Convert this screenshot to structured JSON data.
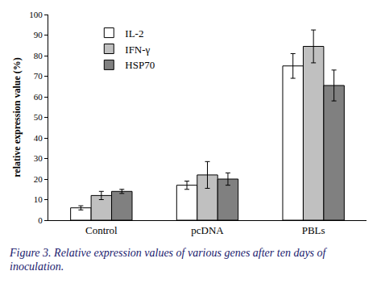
{
  "chart_data": {
    "type": "bar",
    "caption": "Figure 3. Relative expression values of various genes after ten days of inoculation.",
    "y_label": "relative expression value (%)",
    "categories": [
      "Control",
      "pcDNA",
      "PBLs"
    ],
    "series": [
      {
        "name": "IL-2",
        "color": "#ffffff",
        "values": [
          6,
          17,
          75
        ],
        "errors": [
          1,
          2,
          6
        ]
      },
      {
        "name": "IFN-γ",
        "color": "#c0c0c0",
        "values": [
          12,
          22,
          84.5
        ],
        "errors": [
          2,
          6.5,
          8
        ]
      },
      {
        "name": "HSP70",
        "color": "#808080",
        "values": [
          14,
          20,
          65.5
        ],
        "errors": [
          1,
          3,
          7.5
        ]
      }
    ],
    "ylim": [
      0,
      100
    ],
    "yticks": [
      0,
      10,
      20,
      30,
      40,
      50,
      60,
      70,
      80,
      90,
      100
    ],
    "grid": false,
    "legend": "upper left"
  }
}
